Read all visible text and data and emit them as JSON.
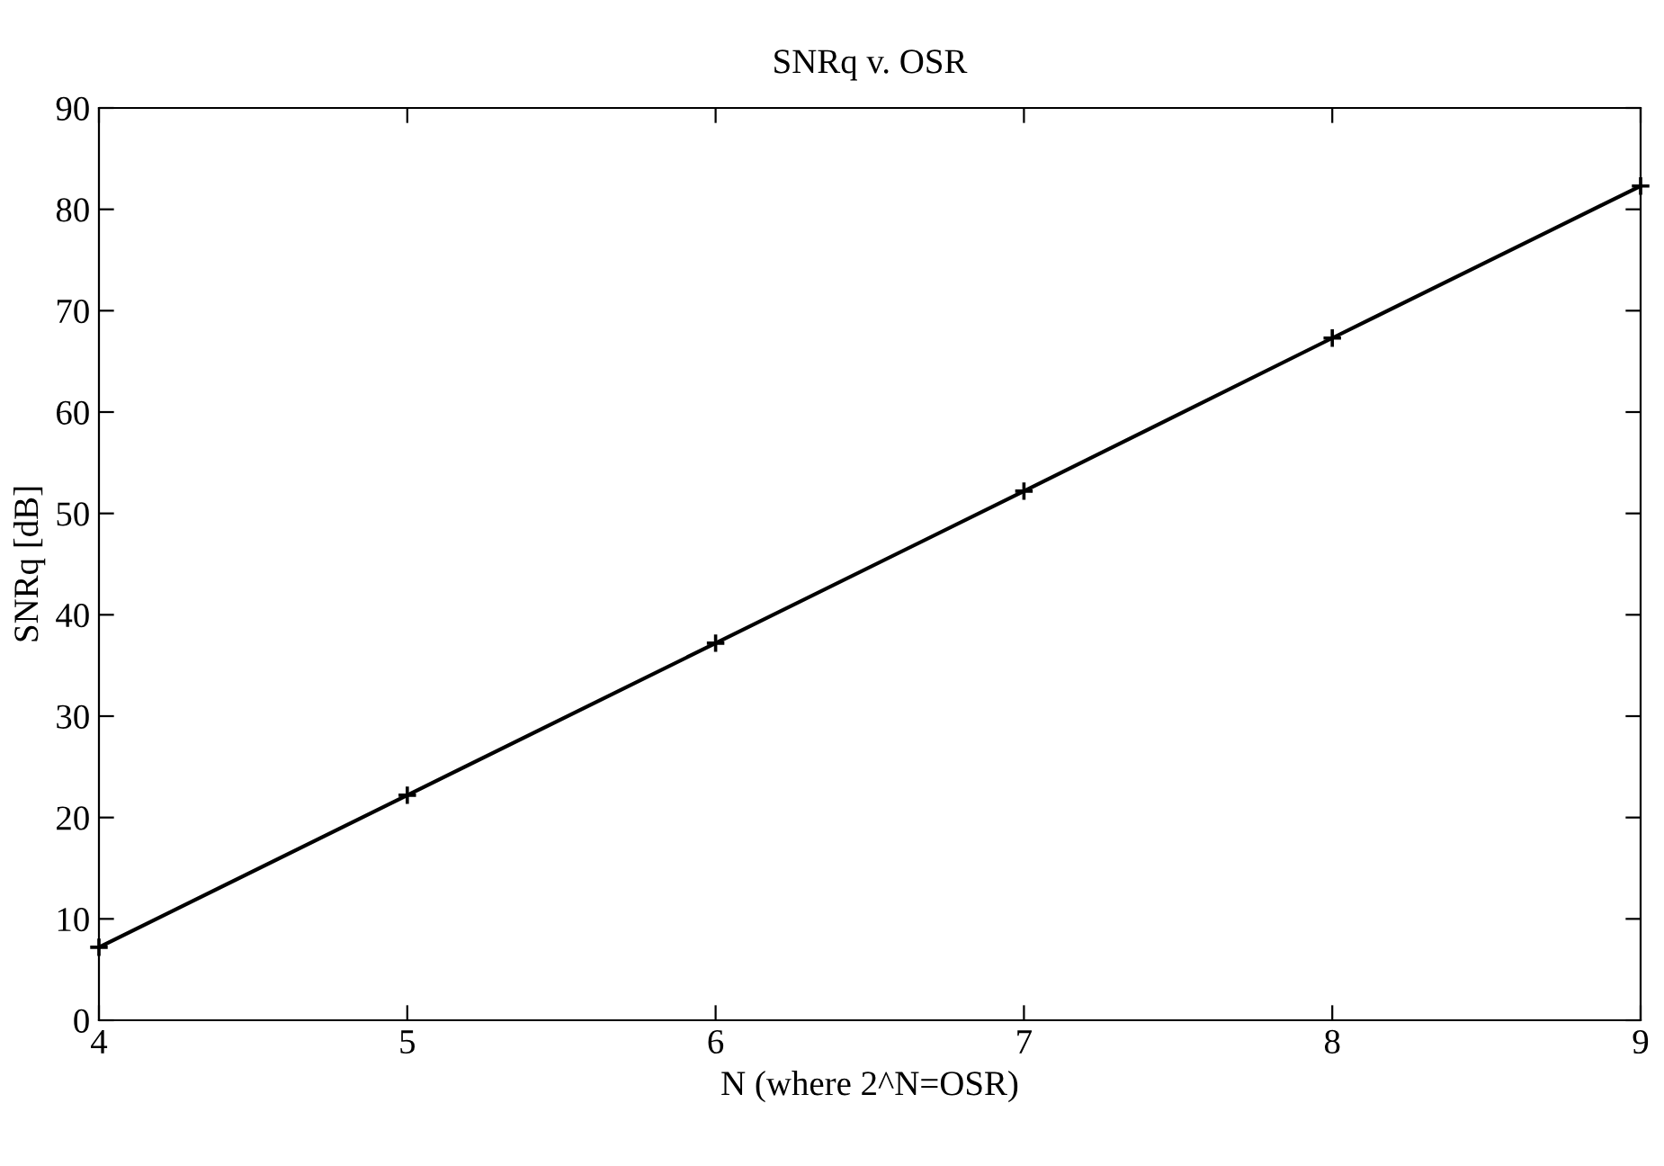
{
  "chart_data": {
    "type": "line",
    "title": "SNRq v. OSR",
    "xlabel": "N (where 2^N=OSR)",
    "ylabel": "SNRq [dB]",
    "x": [
      4,
      5,
      6,
      7,
      8,
      9
    ],
    "series": [
      {
        "color": "#000000",
        "values": [
          7.2,
          22.2,
          37.2,
          52.2,
          67.3,
          82.3
        ]
      }
    ],
    "xlim": [
      4,
      9
    ],
    "xticks": [
      4,
      5,
      6,
      7,
      8,
      9
    ],
    "ylim": [
      0,
      90
    ],
    "yticks": [
      0,
      10,
      20,
      30,
      40,
      50,
      60,
      70,
      80,
      90
    ],
    "grid": false,
    "legend": false,
    "marker": "cross",
    "line_style": "solid"
  }
}
